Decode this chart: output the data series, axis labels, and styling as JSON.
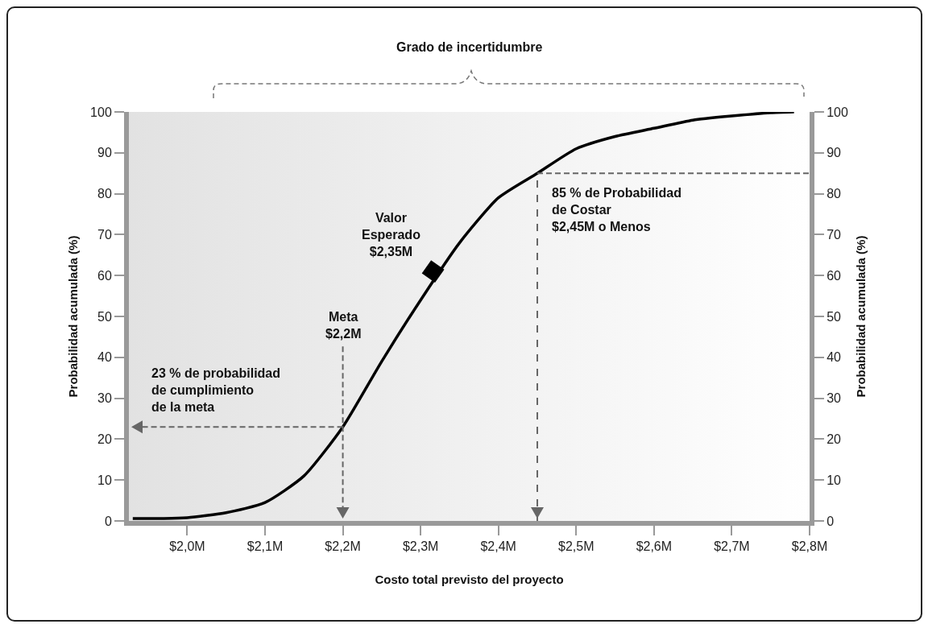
{
  "chart_data": {
    "type": "line",
    "title": "Grado de incertidumbre",
    "xlabel": "Costo total previsto del proyecto",
    "ylabel": "Probabilidad acumulada (%)",
    "y2label": "Probabilidad acumulada (%)",
    "xlim": [
      1.925,
      2.8
    ],
    "xticks": [
      {
        "value": 2.0,
        "label": "$2,0M"
      },
      {
        "value": 2.1,
        "label": "$2,1M"
      },
      {
        "value": 2.2,
        "label": "$2,2M"
      },
      {
        "value": 2.3,
        "label": "$2,3M"
      },
      {
        "value": 2.4,
        "label": "$2,4M"
      },
      {
        "value": 2.5,
        "label": "$2,5M"
      },
      {
        "value": 2.6,
        "label": "$2,6M"
      },
      {
        "value": 2.7,
        "label": "$2,7M"
      },
      {
        "value": 2.8,
        "label": "$2,8M"
      }
    ],
    "ylim": [
      0,
      100
    ],
    "yticks": [
      0,
      10,
      20,
      30,
      40,
      50,
      60,
      70,
      80,
      90,
      100
    ],
    "y2lim": [
      0,
      100
    ],
    "y2ticks": [
      0,
      10,
      20,
      30,
      40,
      50,
      60,
      70,
      80,
      90,
      100
    ],
    "grid": false,
    "series": [
      {
        "color": "#000000",
        "x": [
          1.93,
          1.97,
          2.0,
          2.05,
          2.1,
          2.15,
          2.2,
          2.25,
          2.3,
          2.35,
          2.4,
          2.45,
          2.5,
          2.55,
          2.6,
          2.65,
          2.7,
          2.75,
          2.78
        ],
        "values": [
          0.6,
          0.6,
          0.8,
          2,
          4.5,
          11,
          23,
          39,
          54,
          68,
          79,
          85,
          91,
          94,
          96,
          98,
          99,
          99.8,
          100
        ]
      },
      {
        "type": "scatter",
        "color": "#000000",
        "x": [
          2.316
        ],
        "values": [
          61
        ]
      }
    ],
    "ref_lines": [
      {
        "axis": "x",
        "value": 2.45,
        "color": "#666666",
        "line_style": "dashed"
      }
    ],
    "annotations": [
      {
        "text": "Valor\nEsperado\n$2,35M",
        "x": 2.316,
        "y": 61
      },
      "Meta\n$2,2M",
      {
        "text": "23 % de probabilidad\nde cumplimiento\nde la meta",
        "x": 2.2,
        "y": 23
      },
      {
        "text": "85 % de Probabilidad\nde Costar\n$2,45M o Menos",
        "x": 2.45,
        "y": 85
      }
    ]
  }
}
